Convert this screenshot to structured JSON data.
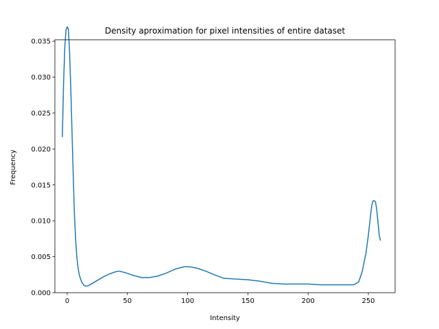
{
  "chart_data": {
    "type": "line",
    "title": "Density aproximation for pixel intensities of entire dataset",
    "xlabel": "Intensity",
    "ylabel": "Frequency",
    "xlim": [
      -10.2,
      272.2
    ],
    "ylim": [
      0,
      0.0352
    ],
    "xticks": [
      0,
      50,
      100,
      150,
      200,
      250
    ],
    "yticks": [
      0.0,
      0.005,
      0.01,
      0.015,
      0.02,
      0.025,
      0.03,
      0.035
    ],
    "xtick_labels": [
      "0",
      "50",
      "100",
      "150",
      "200",
      "250"
    ],
    "ytick_labels": [
      "0.000",
      "0.005",
      "0.010",
      "0.015",
      "0.020",
      "0.025",
      "0.030",
      "0.035"
    ],
    "grid": false,
    "line_color": "#1f77b4",
    "series": [
      {
        "x": [
          -4,
          -3,
          -2,
          -1,
          0,
          1,
          2,
          3,
          4,
          5,
          6,
          7,
          8,
          9,
          10,
          12,
          14,
          16,
          18,
          20,
          25,
          30,
          35,
          40,
          43,
          48,
          55,
          62,
          68,
          75,
          82,
          90,
          97,
          102,
          108,
          115,
          122,
          130,
          140,
          150,
          160,
          170,
          180,
          190,
          200,
          210,
          218,
          225,
          232,
          238,
          242,
          245,
          248,
          250,
          252,
          253,
          254,
          255,
          256,
          257,
          258,
          259,
          260
        ],
        "y": [
          0.0217,
          0.029,
          0.034,
          0.0365,
          0.037,
          0.0367,
          0.0335,
          0.0285,
          0.0225,
          0.0165,
          0.011,
          0.0075,
          0.005,
          0.0035,
          0.0025,
          0.0015,
          0.001,
          0.0009,
          0.001,
          0.0012,
          0.0017,
          0.0022,
          0.0026,
          0.0029,
          0.003,
          0.0028,
          0.0024,
          0.0021,
          0.0021,
          0.0023,
          0.0027,
          0.0033,
          0.0036,
          0.0036,
          0.0034,
          0.003,
          0.0025,
          0.002,
          0.0019,
          0.0018,
          0.0016,
          0.0013,
          0.0012,
          0.0012,
          0.0012,
          0.0011,
          0.0011,
          0.0011,
          0.0011,
          0.0011,
          0.0015,
          0.003,
          0.0055,
          0.008,
          0.011,
          0.0123,
          0.0128,
          0.0128,
          0.0126,
          0.0115,
          0.0098,
          0.008,
          0.0073
        ]
      }
    ]
  }
}
